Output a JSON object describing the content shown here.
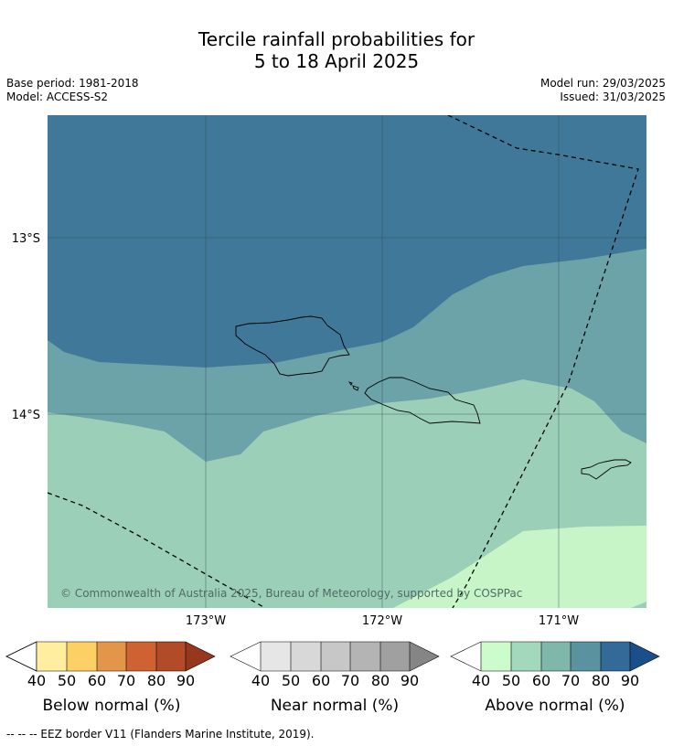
{
  "title_line1": "Tercile rainfall probabilities for",
  "title_line2": "5 to 18 April 2025",
  "meta": {
    "base_period": "Base period: 1981-2018",
    "model": "Model: ACCESS-S2",
    "model_run": "Model run: 29/03/2025",
    "issued": "Issued: 31/03/2025"
  },
  "map": {
    "lat_labels": [
      "13°S",
      "14°S"
    ],
    "lon_labels": [
      "173°W",
      "172°W",
      "171°W"
    ],
    "copyright": "© Commonwealth of Australia 2025, Bureau of Meteorology, supported by COSPPac",
    "category_colors": {
      "above_80_90": "#3f7898",
      "above_70_80": "#6ba3a8",
      "above_60_70": "#9ccfb8",
      "above_50_60": "#c8f5c8"
    }
  },
  "colorbars": [
    {
      "label": "Below normal (%)",
      "ticks": [
        "40",
        "50",
        "60",
        "70",
        "80",
        "90"
      ],
      "colors": [
        "#ffeea0",
        "#fdd066",
        "#e3964a",
        "#cf6233",
        "#b24b28",
        "#96371e"
      ]
    },
    {
      "label": "Near normal (%)",
      "ticks": [
        "40",
        "50",
        "60",
        "70",
        "80",
        "90"
      ],
      "colors": [
        "#e6e6e6",
        "#d8d8d8",
        "#c7c7c7",
        "#b4b4b4",
        "#a0a0a0",
        "#858585"
      ]
    },
    {
      "label": "Above normal (%)",
      "ticks": [
        "40",
        "50",
        "60",
        "70",
        "80",
        "90"
      ],
      "colors": [
        "#ccfbcc",
        "#a3d8bd",
        "#7fb7ab",
        "#5b929f",
        "#346a98",
        "#1b4f89"
      ]
    }
  ],
  "footnote": "--  --  -- EEZ border V11 (Flanders Marine Institute, 2019)."
}
